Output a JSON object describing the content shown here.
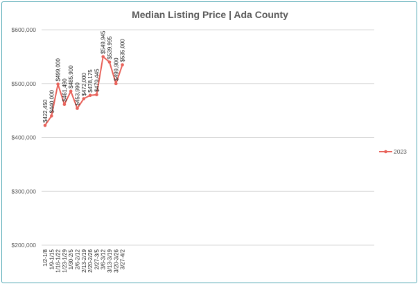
{
  "chart_data": {
    "type": "line",
    "title": "Median Listing Price | Ada County",
    "xlabel": "",
    "ylabel": "",
    "ylim": [
      200000,
      600000
    ],
    "y_ticks": [
      {
        "value": 600000,
        "label": "$600,000"
      },
      {
        "value": 500000,
        "label": "$500,000"
      },
      {
        "value": 400000,
        "label": "$400,000"
      },
      {
        "value": 300000,
        "label": "$300,000"
      },
      {
        "value": 200000,
        "label": "$200,000"
      }
    ],
    "grid": true,
    "legend": "right",
    "categories": [
      "1/2-1/8",
      "1/9-1/15",
      "1/16-1/22",
      "1/23-1/29",
      "1/30-2/5",
      "2/6-2/12",
      "2/13-2/19",
      "2/20-2/26",
      "2/27-3/5",
      "3/6-3/12",
      "3/13-3/19",
      "3/20-3/26",
      "3/27-4/2"
    ],
    "series": [
      {
        "name": "2023",
        "color": "#e8625a",
        "values": [
          422450,
          440000,
          499000,
          461490,
          485900,
          453990,
          472000,
          478175,
          479445,
          549945,
          539995,
          499900,
          535000
        ],
        "labels": [
          "$422,450",
          "$440,000",
          "$499,000",
          "$461,490",
          "$485,900",
          "$453,990",
          "$472,000",
          "$478,175",
          "$479,445",
          "$549,945",
          "$539,995",
          "$499,900",
          "$535,000"
        ]
      }
    ]
  }
}
